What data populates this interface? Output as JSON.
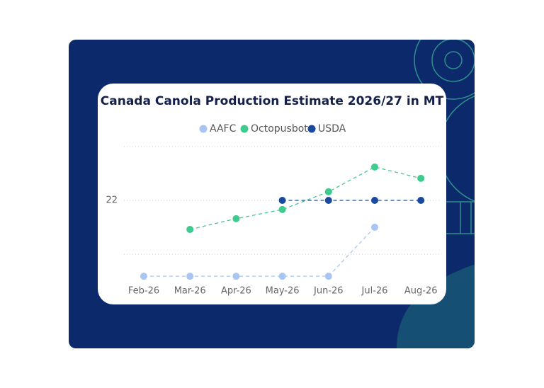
{
  "chart_data": {
    "type": "line",
    "title": "Canada Canola Production Estimate 2026/27 in MT",
    "categories": [
      "Feb-26",
      "Mar-26",
      "Apr-26",
      "May-26",
      "Jun-26",
      "Jul-26",
      "Aug-26"
    ],
    "series": [
      {
        "name": "AAFC",
        "color": "#a9c6f2",
        "values": [
          20.59,
          20.59,
          20.59,
          20.59,
          20.59,
          21.5,
          null
        ]
      },
      {
        "name": "Octopusbot",
        "color": "#3dcc8e",
        "values": [
          null,
          21.46,
          21.66,
          21.83,
          22.16,
          22.62,
          22.41
        ]
      },
      {
        "name": "USDA",
        "color": "#1b4a9c",
        "values": [
          null,
          null,
          null,
          22,
          22,
          22,
          22
        ]
      }
    ],
    "ylim": [
      20.4,
      23.1
    ],
    "yticks": [
      22
    ],
    "ygrid": [
      21,
      22,
      23
    ],
    "grid": true,
    "legend": "top",
    "dashed": true
  }
}
